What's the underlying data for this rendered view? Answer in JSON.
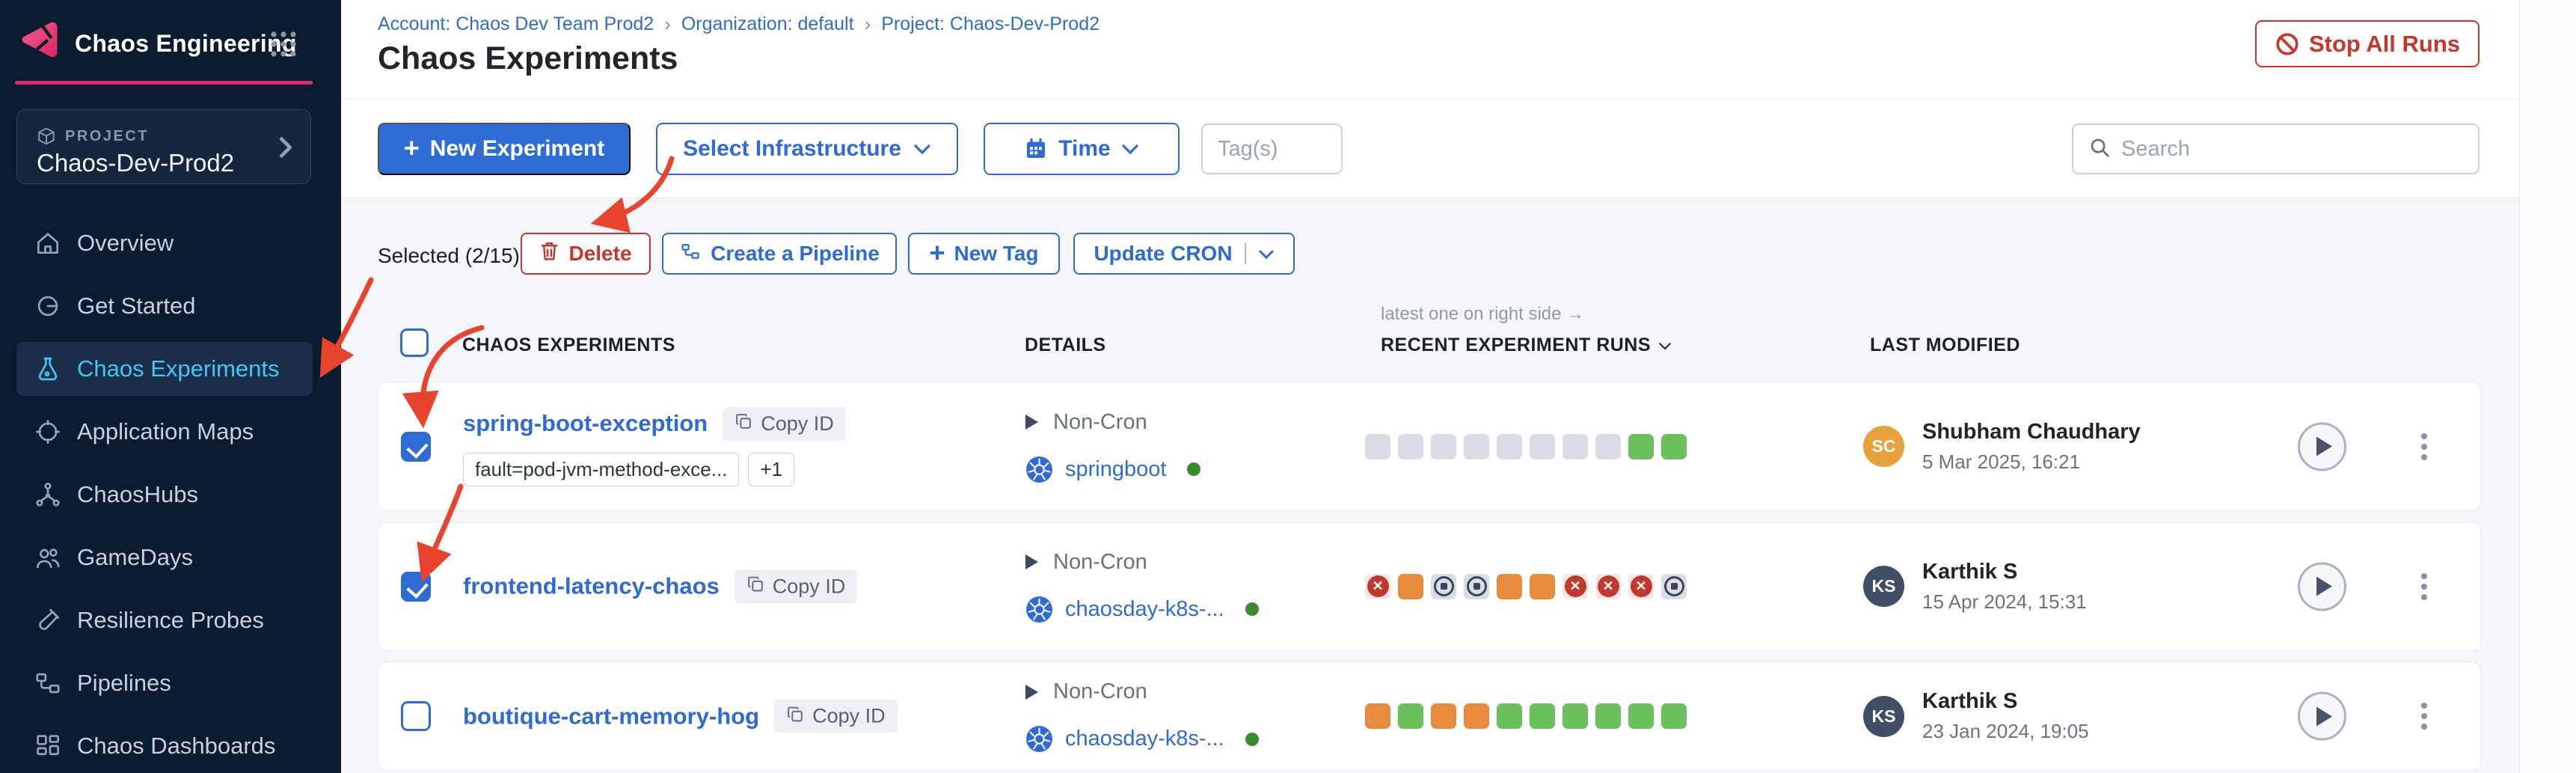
{
  "sidebar": {
    "app_title": "Chaos Engineering",
    "project_label": "PROJECT",
    "project_name": "Chaos-Dev-Prod2",
    "items": [
      {
        "label": "Overview",
        "icon": "home-icon",
        "active": false
      },
      {
        "label": "Get Started",
        "icon": "get-started-icon",
        "active": false
      },
      {
        "label": "Chaos Experiments",
        "icon": "flask-icon",
        "active": true
      },
      {
        "label": "Application Maps",
        "icon": "target-icon",
        "active": false
      },
      {
        "label": "ChaosHubs",
        "icon": "hub-icon",
        "active": false
      },
      {
        "label": "GameDays",
        "icon": "people-icon",
        "active": false
      },
      {
        "label": "Resilience Probes",
        "icon": "probe-icon",
        "active": false
      },
      {
        "label": "Pipelines",
        "icon": "pipeline-icon",
        "active": false
      },
      {
        "label": "Chaos Dashboards",
        "icon": "dashboard-icon",
        "active": false
      }
    ]
  },
  "header": {
    "breadcrumb": [
      {
        "label": "Account: Chaos Dev Team Prod2"
      },
      {
        "label": "Organization: default"
      },
      {
        "label": "Project: Chaos-Dev-Prod2"
      }
    ],
    "page_title": "Chaos Experiments",
    "stop_all_runs_label": "Stop All Runs"
  },
  "toolbar": {
    "new_experiment_label": "New Experiment",
    "select_infrastructure_label": "Select Infrastructure",
    "time_label": "Time",
    "tags_placeholder": "Tag(s)",
    "search_placeholder": "Search"
  },
  "selection_bar": {
    "selected_label": "Selected (2/15)",
    "delete_label": "Delete",
    "create_pipeline_label": "Create a Pipeline",
    "new_tag_label": "New Tag",
    "update_cron_label": "Update CRON"
  },
  "table": {
    "runs_hint": "latest one on right side →",
    "columns": {
      "experiments": "CHAOS EXPERIMENTS",
      "details": "DETAILS",
      "runs": "RECENT EXPERIMENT RUNS",
      "modified": "LAST MODIFIED"
    },
    "rows": [
      {
        "name": "spring-boot-exception",
        "copy_id_label": "Copy ID",
        "checked": true,
        "tags": [
          "fault=pod-jvm-method-exce...",
          "+1"
        ],
        "schedule": "Non-Cron",
        "infrastructure": "springboot",
        "runs": [
          "na",
          "na",
          "na",
          "na",
          "na",
          "na",
          "na",
          "na",
          "passed",
          "passed"
        ],
        "modified_by": {
          "initials": "SC",
          "name": "Shubham Chaudhary",
          "date": "5 Mar 2025, 16:21",
          "avatar_color": "#E9A23B"
        }
      },
      {
        "name": "frontend-latency-chaos",
        "copy_id_label": "Copy ID",
        "checked": true,
        "tags": [],
        "schedule": "Non-Cron",
        "infrastructure": "chaosday-k8s-...",
        "runs": [
          "failed",
          "aborted",
          "stopped",
          "stopped",
          "aborted",
          "aborted",
          "failed",
          "failed",
          "failed",
          "stopped"
        ],
        "modified_by": {
          "initials": "KS",
          "name": "Karthik S",
          "date": "15 Apr 2024, 15:31",
          "avatar_color": "#414E68"
        }
      },
      {
        "name": "boutique-cart-memory-hog",
        "copy_id_label": "Copy ID",
        "checked": false,
        "tags": [],
        "schedule": "Non-Cron",
        "infrastructure": "chaosday-k8s-...",
        "runs": [
          "aborted",
          "passed",
          "aborted",
          "aborted",
          "passed",
          "passed",
          "passed",
          "passed",
          "passed",
          "passed"
        ],
        "modified_by": {
          "initials": "KS",
          "name": "Karthik S",
          "date": "23 Jan 2024, 19:05",
          "avatar_color": "#414E68"
        }
      }
    ]
  },
  "colors": {
    "accent_blue": "#2E6BD4",
    "brand_pink": "#E7256E",
    "active_item_blue": "#3FC8F4",
    "danger_red": "#C8352B",
    "run_passed": "#6CC05C",
    "run_aborted": "#E98B3F",
    "run_failed": "#C23A2D",
    "run_na": "#DBDDE6",
    "annotation_red": "#E8432C"
  }
}
